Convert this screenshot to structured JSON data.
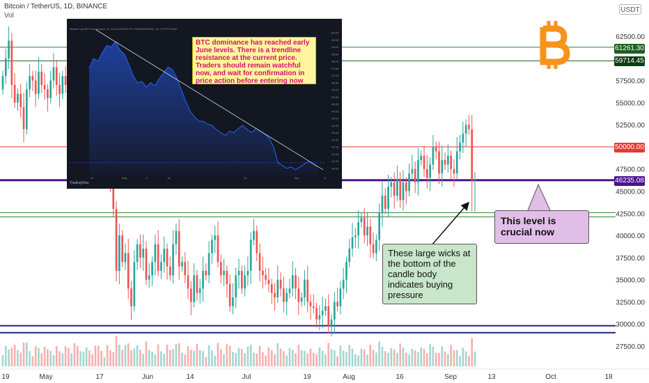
{
  "header": {
    "symbol": "Bitcoin / TetherUS, 1D, BINANCE",
    "volume_label": "Vol",
    "currency_badge": "USDT"
  },
  "price_axis": {
    "labels": [
      "62500.00",
      "57500.00",
      "55000.00",
      "52500.00",
      "47500.00",
      "45000.00",
      "42500.00",
      "40000.00",
      "37500.00",
      "35000.00",
      "32500.00",
      "30000.00",
      "27500.00"
    ],
    "values": [
      62500,
      57500,
      55000,
      52500,
      47500,
      45000,
      42500,
      40000,
      37500,
      35000,
      32500,
      30000,
      27500
    ]
  },
  "time_axis": {
    "labels": [
      "19",
      "May",
      "17",
      "Jun",
      "14",
      "Jul",
      "19",
      "Aug",
      "16",
      "Sep",
      "13",
      "Oct",
      "18"
    ]
  },
  "levels": [
    {
      "name": "resistance-green-high",
      "price": 61261.3,
      "label": "61261.30",
      "color": "#2e7d32"
    },
    {
      "name": "resistance-green-low",
      "price": 59714.45,
      "label": "59714.45",
      "color": "#1b5e20"
    },
    {
      "name": "round-50k",
      "price": 50000.0,
      "label": "50000.00",
      "color": "#e53935"
    },
    {
      "name": "key-level",
      "price": 46235.08,
      "label": "46235.08",
      "color": "#4a148c"
    },
    {
      "name": "support-green",
      "price": 42100,
      "label": "",
      "color": "#2e7d32"
    },
    {
      "name": "support-purple",
      "price": 29800,
      "label": "",
      "color": "#311b92"
    }
  ],
  "annotations": {
    "dominance_note": "BTC dominance has reached early June levels. There is a trendline resistance at the current price. Traders should remain watchful now, and wait for confirmation in price action before entering now",
    "crucial_note": "This level is crucial now",
    "wicks_note": "These large wicks at the bottom of the candle body indicates buying pressure"
  },
  "inset": {
    "header": "Market Cap BTC Dominance, %, CALCULATED BY TRADINGVIEW, 1D, CRYPTOCAP",
    "branding": "TradingView",
    "x_labels": [
      "21",
      "Aug",
      "9",
      "16",
      "23",
      "Sep",
      "6"
    ],
    "y_labels": [
      "50.00",
      "49.50",
      "49.00",
      "48.50",
      "48.00",
      "47.50",
      "47.00",
      "46.50",
      "46.00",
      "45.50",
      "45.00",
      "44.50",
      "44.00",
      "43.50",
      "43.00",
      "42.50",
      "42.00",
      "41.50",
      "41.00",
      "40.50"
    ]
  },
  "colors": {
    "bull": "#26a69a",
    "bear": "#ef5350",
    "vol_bull": "#a5d6d0",
    "vol_bear": "#f7b0ae",
    "bitcoin": "#f7931a"
  },
  "chart_data": [
    {
      "type": "candlestick",
      "title": "Bitcoin / TetherUS, 1D, BINANCE",
      "ylim": [
        26000,
        65500
      ],
      "closes": [
        58000,
        60000,
        62000,
        57000,
        55000,
        56000,
        54500,
        52000,
        56500,
        58000,
        57500,
        56000,
        58500,
        57000,
        56500,
        55500,
        57500,
        59000,
        57000,
        56000,
        58000,
        57000,
        55000,
        56000,
        54000,
        51500,
        53000,
        56000,
        57000,
        56000,
        55000,
        54000,
        51000,
        49000,
        49500,
        47000,
        45500,
        43000,
        36000,
        40000,
        37000,
        38000,
        34000,
        32000,
        37000,
        39000,
        37500,
        38500,
        35000,
        35500,
        37000,
        39000,
        36000,
        37000,
        38500,
        36500,
        35500,
        39000,
        40500,
        36500,
        37000,
        35500,
        34000,
        32500,
        35500,
        33500,
        34000,
        36000,
        35500,
        38000,
        39500,
        40000,
        37000,
        35500,
        36000,
        34500,
        32000,
        33000,
        35500,
        36000,
        34000,
        35500,
        36000,
        39500,
        40500,
        38000,
        36000,
        35500,
        35000,
        34500,
        33500,
        33000,
        35000,
        34000,
        32500,
        33500,
        34000,
        35500,
        34000,
        32500,
        33000,
        35000,
        32500,
        32000,
        31800,
        30500,
        31000,
        31500,
        32000,
        29800,
        30500,
        32500,
        32000,
        34000,
        35000,
        37000,
        38500,
        39800,
        40000,
        41500,
        42000,
        40000,
        41000,
        39000,
        38000,
        39500,
        42500,
        44500,
        43000,
        45500,
        46000,
        44500,
        46300,
        44000,
        46000,
        45000,
        47000,
        47500,
        46000,
        48500,
        49000,
        47500,
        46500,
        48000,
        50000,
        49500,
        47000,
        48500,
        48000,
        49000,
        47500,
        47000,
        49500,
        50500,
        51500,
        52500,
        52000,
        46200,
        46300
      ],
      "volume_scale": "relative"
    },
    {
      "type": "area",
      "title": "Market Cap BTC Dominance, %, CALCULATED BY TRADINGVIEW, 1D, CRYPTOCAP",
      "values": [
        47.5,
        48.2,
        48.0,
        48.6,
        49.1,
        49.0,
        49.4,
        48.8,
        48.5,
        47.8,
        47.0,
        46.5,
        46.6,
        46.2,
        46.5,
        46.3,
        46.8,
        47.2,
        47.6,
        47.4,
        46.8,
        46.0,
        45.2,
        44.5,
        44.1,
        43.8,
        43.8,
        43.6,
        43.5,
        43.2,
        43.0,
        42.8,
        43.1,
        43.0,
        43.3,
        43.5,
        43.2,
        43.0,
        43.3,
        43.1,
        42.9,
        42.6,
        42.0,
        40.9,
        40.7,
        40.5,
        40.6,
        40.4,
        40.6,
        40.8,
        41.0,
        40.8,
        40.6
      ],
      "ylim": [
        40.0,
        50.0
      ]
    }
  ]
}
